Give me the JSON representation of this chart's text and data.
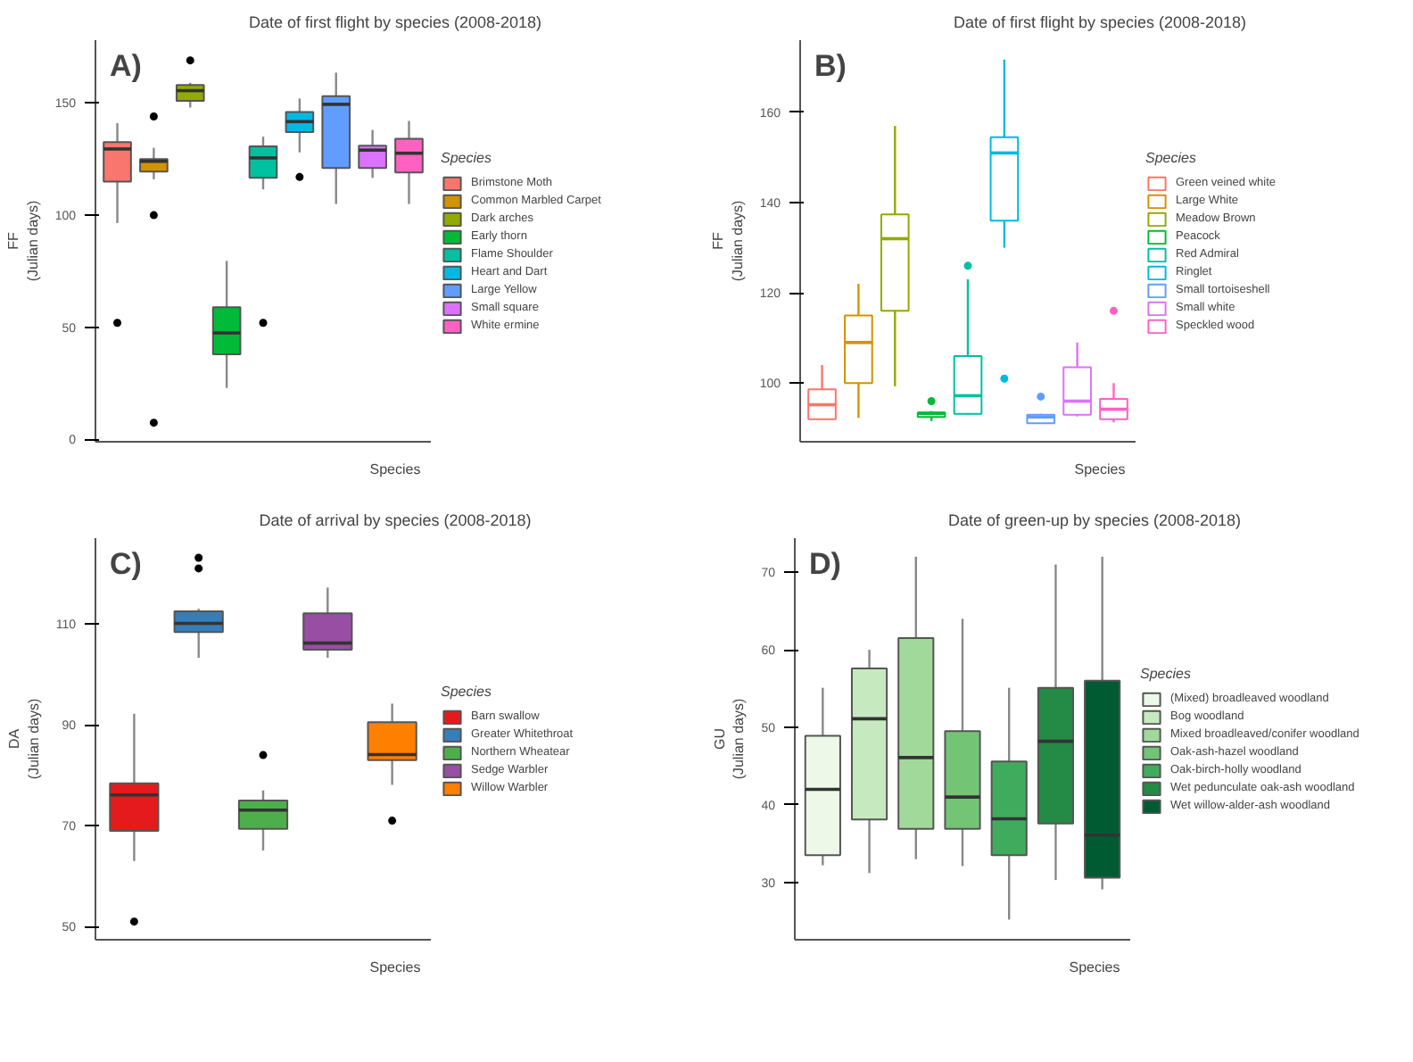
{
  "chart_data": [
    {
      "type": "box",
      "title": "Date of first flight by species (2008-2018)",
      "xlabel": "Species",
      "ylabel": "FF\n(Julian days)",
      "legend_title": "Species",
      "legend": "right",
      "tick_labels": "y",
      "annotations": [
        "A)"
      ],
      "ylim": [
        -1,
        178
      ],
      "yticks": [
        0,
        50,
        100,
        150
      ],
      "categories": [
        null,
        null,
        null,
        null,
        null,
        null,
        null,
        null,
        null
      ],
      "series": [
        {
          "name": "Brimstone Moth",
          "color": "#F8766D",
          "boxes": [
            {
              "low": 96.5,
              "q1": 115,
              "median": 129.5,
              "q3": 132.6,
              "high": 141,
              "outliers": [
                52
              ]
            },
            null,
            null,
            null,
            null,
            null,
            null,
            null,
            null
          ]
        },
        {
          "name": "Common Marbled Carpet",
          "color": "#D39200",
          "boxes": [
            null,
            {
              "low": 116,
              "q1": 119.4,
              "median": 124,
              "q3": 125,
              "high": 130,
              "outliers": [
                144,
                100,
                7.5
              ]
            },
            null,
            null,
            null,
            null,
            null,
            null,
            null
          ]
        },
        {
          "name": "Dark arches",
          "color": "#93AA00",
          "boxes": [
            null,
            null,
            {
              "low": 148,
              "q1": 151,
              "median": 155.5,
              "q3": 158,
              "high": 159,
              "outliers": [
                169
              ]
            },
            null,
            null,
            null,
            null,
            null,
            null
          ]
        },
        {
          "name": "Early thorn",
          "color": "#00BA38",
          "boxes": [
            null,
            null,
            null,
            {
              "low": 23,
              "q1": 38,
              "median": 47.5,
              "q3": 59,
              "high": 79.6
            },
            null,
            null,
            null,
            null,
            null
          ]
        },
        {
          "name": "Flame Shoulder",
          "color": "#00C19F",
          "boxes": [
            null,
            null,
            null,
            null,
            {
              "low": 111.5,
              "q1": 116.6,
              "median": 125.5,
              "q3": 130.7,
              "high": 135,
              "outliers": [
                52
              ]
            },
            null,
            null,
            null,
            null
          ]
        },
        {
          "name": "Heart and Dart",
          "color": "#00B9E3",
          "boxes": [
            null,
            null,
            null,
            null,
            null,
            {
              "low": 128,
              "q1": 137,
              "median": 141.7,
              "q3": 146,
              "high": 152,
              "outliers": [
                117
              ]
            },
            null,
            null,
            null
          ]
        },
        {
          "name": "Large Yellow",
          "color": "#619CFF",
          "boxes": [
            null,
            null,
            null,
            null,
            null,
            null,
            {
              "low": 105,
              "q1": 121,
              "median": 149.4,
              "q3": 153,
              "high": 163.5
            },
            null,
            null
          ]
        },
        {
          "name": "Small square",
          "color": "#DB72FB",
          "boxes": [
            null,
            null,
            null,
            null,
            null,
            null,
            null,
            {
              "low": 116.6,
              "q1": 121,
              "median": 129,
              "q3": 131,
              "high": 138
            },
            null
          ]
        },
        {
          "name": "White ermine",
          "color": "#FF61C3",
          "boxes": [
            null,
            null,
            null,
            null,
            null,
            null,
            null,
            null,
            {
              "low": 105,
              "q1": 119,
              "median": 127.6,
              "q3": 134,
              "high": 142
            }
          ]
        }
      ]
    },
    {
      "type": "box",
      "title": "Date of first flight by species (2008-2018)",
      "xlabel": "Species",
      "ylabel": "FF\n(Julian days)",
      "legend_title": "Species",
      "legend": "right",
      "tick_labels": "y",
      "annotations": [
        "B)"
      ],
      "ylim": [
        87,
        176
      ],
      "yticks": [
        100,
        120,
        140,
        160
      ],
      "categories": [
        null,
        null,
        null,
        null,
        null,
        null,
        null,
        null,
        null
      ],
      "series": [
        {
          "name": "Green veined white",
          "color": "#F8766D",
          "boxes": [
            {
              "low": 92,
              "q1": 92,
              "median": 95.2,
              "q3": 98.6,
              "high": 104
            },
            null,
            null,
            null,
            null,
            null,
            null,
            null,
            null
          ]
        },
        {
          "name": "Large White",
          "color": "#D39200",
          "boxes": [
            null,
            {
              "low": 92.3,
              "q1": 100,
              "median": 109,
              "q3": 115,
              "high": 122
            },
            null,
            null,
            null,
            null,
            null,
            null,
            null
          ]
        },
        {
          "name": "Meadow Brown",
          "color": "#93AA00",
          "boxes": [
            null,
            null,
            {
              "low": 99.3,
              "q1": 116,
              "median": 132,
              "q3": 137.4,
              "high": 157
            },
            null,
            null,
            null,
            null,
            null,
            null
          ]
        },
        {
          "name": "Peacock",
          "color": "#00BA38",
          "boxes": [
            null,
            null,
            null,
            {
              "low": 91.6,
              "q1": 92.5,
              "median": 93.3,
              "q3": 93.5,
              "high": 93.8,
              "outliers": [
                96
              ]
            },
            null,
            null,
            null,
            null,
            null
          ]
        },
        {
          "name": "Red Admiral",
          "color": "#00C19F",
          "boxes": [
            null,
            null,
            null,
            null,
            {
              "low": 93,
              "q1": 93.2,
              "median": 97.2,
              "q3": 106,
              "high": 123,
              "outliers": [
                126
              ]
            },
            null,
            null,
            null,
            null
          ]
        },
        {
          "name": "Ringlet",
          "color": "#00B9E3",
          "boxes": [
            null,
            null,
            null,
            null,
            null,
            {
              "low": 130,
              "q1": 136,
              "median": 151,
              "q3": 154.5,
              "high": 171.7,
              "outliers": [
                101
              ]
            },
            null,
            null,
            null
          ]
        },
        {
          "name": "Small tortoiseshell",
          "color": "#619CFF",
          "boxes": [
            null,
            null,
            null,
            null,
            null,
            null,
            {
              "low": 91.1,
              "q1": 91.1,
              "median": 92.5,
              "q3": 93,
              "high": 93.2,
              "outliers": [
                97
              ]
            },
            null,
            null
          ]
        },
        {
          "name": "Small white",
          "color": "#DB72FB",
          "boxes": [
            null,
            null,
            null,
            null,
            null,
            null,
            null,
            {
              "low": 92.6,
              "q1": 93,
              "median": 96,
              "q3": 103.5,
              "high": 109
            },
            null
          ]
        },
        {
          "name": "Speckled wood",
          "color": "#FF61C3",
          "boxes": [
            null,
            null,
            null,
            null,
            null,
            null,
            null,
            null,
            {
              "low": 91.3,
              "q1": 92,
              "median": 94.2,
              "q3": 96.5,
              "high": 100,
              "outliers": [
                116
              ]
            }
          ]
        }
      ]
    },
    {
      "type": "box",
      "title": "Date of arrival by species (2008-2018)",
      "xlabel": "Species",
      "ylabel": "DA\n(Julian days)",
      "legend_title": "Species",
      "legend": "right",
      "tick_labels": "y",
      "annotations": [
        "C)"
      ],
      "ylim": [
        47.4,
        127
      ],
      "yticks": [
        50,
        70,
        90,
        110
      ],
      "categories": [
        null,
        null,
        null,
        null,
        null
      ],
      "series": [
        {
          "name": "Barn swallow",
          "color": "#E41A1C",
          "boxes": [
            {
              "low": 63,
              "q1": 69,
              "median": 76.1,
              "q3": 78.4,
              "high": 92.2,
              "outliers": [
                51
              ]
            },
            null,
            null,
            null,
            null
          ]
        },
        {
          "name": "Greater Whitethroat",
          "color": "#377EB8",
          "boxes": [
            null,
            {
              "low": 103.3,
              "q1": 108.4,
              "median": 110.1,
              "q3": 112.5,
              "high": 113,
              "outliers": [
                123.1,
                121
              ]
            },
            null,
            null,
            null
          ]
        },
        {
          "name": "Northern Wheatear",
          "color": "#4DAF4A",
          "boxes": [
            null,
            null,
            {
              "low": 65.1,
              "q1": 69.4,
              "median": 73.1,
              "q3": 75,
              "high": 77,
              "outliers": [
                84
              ]
            },
            null,
            null
          ]
        },
        {
          "name": "Sedge Warbler",
          "color": "#984EA3",
          "boxes": [
            null,
            null,
            null,
            {
              "low": 103.3,
              "q1": 104.9,
              "median": 106.2,
              "q3": 112.1,
              "high": 117.2
            },
            null
          ]
        },
        {
          "name": "Willow Warbler",
          "color": "#FF7F00",
          "boxes": [
            null,
            null,
            null,
            null,
            {
              "low": 78.1,
              "q1": 83,
              "median": 84.1,
              "q3": 90.5,
              "high": 94.2,
              "outliers": [
                71
              ]
            }
          ]
        }
      ]
    },
    {
      "type": "box",
      "title": "Date of green-up by species (2008-2018)",
      "xlabel": "Species",
      "ylabel": "GU\n(Julian days)",
      "legend_title": "Species",
      "legend": "right",
      "tick_labels": "y",
      "annotations": [
        "D)"
      ],
      "ylim": [
        22.6,
        74.4
      ],
      "yticks": [
        30,
        40,
        50,
        60,
        70
      ],
      "categories": [
        null,
        null,
        null,
        null,
        null,
        null,
        null
      ],
      "series": [
        {
          "name": "(Mixed) broadleaved woodland",
          "color": "#EDF8E9",
          "boxes": [
            {
              "low": 32.2,
              "q1": 33.5,
              "median": 42,
              "q3": 48.9,
              "high": 55.1
            },
            null,
            null,
            null,
            null,
            null,
            null
          ]
        },
        {
          "name": "Bog woodland",
          "color": "#C7E9C0",
          "boxes": [
            null,
            {
              "low": 31.2,
              "q1": 38.1,
              "median": 51.1,
              "q3": 57.6,
              "high": 60
            },
            null,
            null,
            null,
            null,
            null
          ]
        },
        {
          "name": "Mixed broadleaved/conifer woodland",
          "color": "#A1D99B",
          "boxes": [
            null,
            null,
            {
              "low": 33,
              "q1": 36.9,
              "median": 46.1,
              "q3": 61.5,
              "high": 72
            },
            null,
            null,
            null,
            null
          ]
        },
        {
          "name": "Oak-ash-hazel woodland",
          "color": "#74C476",
          "boxes": [
            null,
            null,
            null,
            {
              "low": 32.1,
              "q1": 36.9,
              "median": 41,
              "q3": 49.5,
              "high": 64
            },
            null,
            null,
            null
          ]
        },
        {
          "name": "Oak-birch-holly woodland",
          "color": "#41AB5D",
          "boxes": [
            null,
            null,
            null,
            null,
            {
              "low": 25.2,
              "q1": 33.5,
              "median": 38.2,
              "q3": 45.6,
              "high": 55.1
            },
            null,
            null
          ]
        },
        {
          "name": "Wet pedunculate oak-ash woodland",
          "color": "#238B45",
          "boxes": [
            null,
            null,
            null,
            null,
            null,
            {
              "low": 30.3,
              "q1": 37.6,
              "median": 48.2,
              "q3": 55.1,
              "high": 71
            },
            null
          ]
        },
        {
          "name": "Wet willow-alder-ash woodland",
          "color": "#005A32",
          "boxes": [
            null,
            null,
            null,
            null,
            null,
            null,
            {
              "low": 29.1,
              "q1": 30.6,
              "median": 36.1,
              "q3": 56,
              "high": 72
            }
          ]
        }
      ]
    }
  ]
}
